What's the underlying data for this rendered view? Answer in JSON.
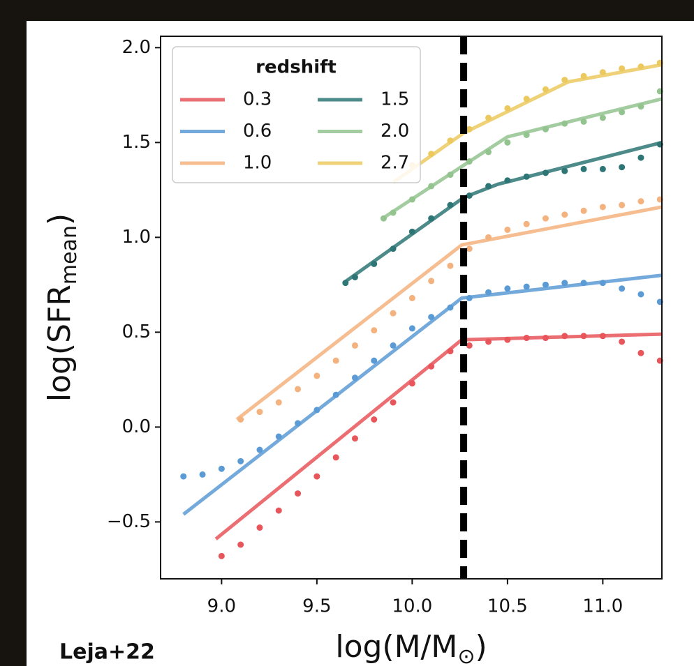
{
  "chart_data": {
    "type": "line",
    "xlabel": [
      "log(M/M",
      "⊙",
      ")"
    ],
    "ylabel": [
      "log(SFR",
      "mean",
      ")"
    ],
    "annotation": "Leja+22",
    "legend_title": "redshift",
    "legend": "upper left",
    "vline": 10.27,
    "xlim": [
      8.68,
      11.31
    ],
    "ylim": [
      -0.8,
      2.06
    ],
    "xticks": [
      {
        "value": 9,
        "label": "9.0"
      },
      {
        "value": 9.5,
        "label": "9.5"
      },
      {
        "value": 10,
        "label": "10.0"
      },
      {
        "value": 10.5,
        "label": "10.5"
      },
      {
        "value": 11,
        "label": "11.0"
      }
    ],
    "yticks": [
      {
        "value": -0.5,
        "label": "−0.5"
      },
      {
        "value": 0,
        "label": "0.0"
      },
      {
        "value": 0.5,
        "label": "0.5"
      },
      {
        "value": 1,
        "label": "1.0"
      },
      {
        "value": 1.5,
        "label": "1.5"
      },
      {
        "value": 2,
        "label": "2.0"
      }
    ],
    "series": [
      {
        "name": "0.3",
        "color": "#e8555a",
        "line_x": [
          8.97,
          10.26,
          11.31
        ],
        "line_values": [
          -0.59,
          0.46,
          0.49
        ],
        "points_x": [
          9.0,
          9.1,
          9.2,
          9.3,
          9.4,
          9.5,
          9.6,
          9.7,
          9.8,
          9.9,
          10.0,
          10.1,
          10.2,
          10.3,
          10.4,
          10.5,
          10.6,
          10.7,
          10.8,
          10.9,
          11.0,
          11.1,
          11.2,
          11.3
        ],
        "points_values": [
          -0.68,
          -0.62,
          -0.53,
          -0.44,
          -0.35,
          -0.26,
          -0.16,
          -0.06,
          0.04,
          0.13,
          0.23,
          0.32,
          0.4,
          0.43,
          0.45,
          0.46,
          0.47,
          0.47,
          0.48,
          0.48,
          0.48,
          0.45,
          0.39,
          0.35
        ]
      },
      {
        "name": "0.6",
        "color": "#5b9bd5",
        "line_x": [
          8.8,
          10.26,
          11.31
        ],
        "line_values": [
          -0.46,
          0.68,
          0.8
        ],
        "points_x": [
          8.8,
          8.9,
          9.0,
          9.1,
          9.2,
          9.3,
          9.4,
          9.5,
          9.6,
          9.7,
          9.8,
          9.9,
          10.0,
          10.1,
          10.2,
          10.3,
          10.4,
          10.5,
          10.6,
          10.7,
          10.8,
          10.9,
          11.0,
          11.1,
          11.2,
          11.3
        ],
        "points_values": [
          -0.26,
          -0.25,
          -0.22,
          -0.18,
          -0.12,
          -0.05,
          0.02,
          0.09,
          0.17,
          0.26,
          0.35,
          0.43,
          0.52,
          0.58,
          0.63,
          0.68,
          0.71,
          0.73,
          0.74,
          0.75,
          0.76,
          0.76,
          0.76,
          0.73,
          0.7,
          0.66
        ]
      },
      {
        "name": "1.0",
        "color": "#f4b27e",
        "line_x": [
          9.08,
          10.26,
          11.31
        ],
        "line_values": [
          0.04,
          0.96,
          1.16
        ],
        "points_x": [
          9.1,
          9.2,
          9.3,
          9.4,
          9.5,
          9.6,
          9.7,
          9.8,
          9.9,
          10.0,
          10.1,
          10.2,
          10.3,
          10.4,
          10.5,
          10.6,
          10.7,
          10.8,
          10.9,
          11.0,
          11.1,
          11.2,
          11.3
        ],
        "points_values": [
          0.04,
          0.08,
          0.13,
          0.2,
          0.27,
          0.35,
          0.43,
          0.51,
          0.6,
          0.68,
          0.77,
          0.85,
          0.94,
          1.0,
          1.04,
          1.07,
          1.1,
          1.12,
          1.14,
          1.16,
          1.17,
          1.19,
          1.2
        ]
      },
      {
        "name": "1.5",
        "color": "#2e7676",
        "line_x": [
          9.64,
          10.27,
          10.45,
          11.31
        ],
        "line_values": [
          0.76,
          1.21,
          1.28,
          1.5
        ],
        "points_x": [
          9.65,
          9.7,
          9.8,
          9.9,
          10.0,
          10.1,
          10.2,
          10.3,
          10.4,
          10.5,
          10.6,
          10.7,
          10.8,
          10.9,
          11.0,
          11.1,
          11.2,
          11.3
        ],
        "points_values": [
          0.76,
          0.79,
          0.86,
          0.94,
          1.03,
          1.1,
          1.17,
          1.22,
          1.27,
          1.3,
          1.32,
          1.34,
          1.35,
          1.36,
          1.36,
          1.37,
          1.42,
          1.49
        ]
      },
      {
        "name": "2.0",
        "color": "#93c48f",
        "line_x": [
          9.86,
          10.27,
          10.5,
          11.31
        ],
        "line_values": [
          1.11,
          1.38,
          1.53,
          1.73
        ],
        "points_x": [
          9.85,
          9.9,
          10.0,
          10.1,
          10.2,
          10.3,
          10.4,
          10.5,
          10.6,
          10.7,
          10.8,
          10.9,
          11.0,
          11.1,
          11.2,
          11.3
        ],
        "points_values": [
          1.1,
          1.13,
          1.2,
          1.27,
          1.33,
          1.4,
          1.45,
          1.5,
          1.54,
          1.57,
          1.6,
          1.61,
          1.63,
          1.66,
          1.69,
          1.77
        ]
      },
      {
        "name": "2.7",
        "color": "#ecc95f",
        "line_x": [
          9.9,
          10.27,
          10.82,
          11.31
        ],
        "line_values": [
          1.29,
          1.55,
          1.82,
          1.91
        ],
        "points_x": [
          10.0,
          10.1,
          10.2,
          10.3,
          10.4,
          10.5,
          10.6,
          10.7,
          10.8,
          10.9,
          11.0,
          11.1,
          11.2,
          11.3
        ],
        "points_values": [
          1.38,
          1.44,
          1.51,
          1.57,
          1.63,
          1.68,
          1.73,
          1.78,
          1.83,
          1.85,
          1.87,
          1.89,
          1.9,
          1.92
        ]
      }
    ]
  }
}
